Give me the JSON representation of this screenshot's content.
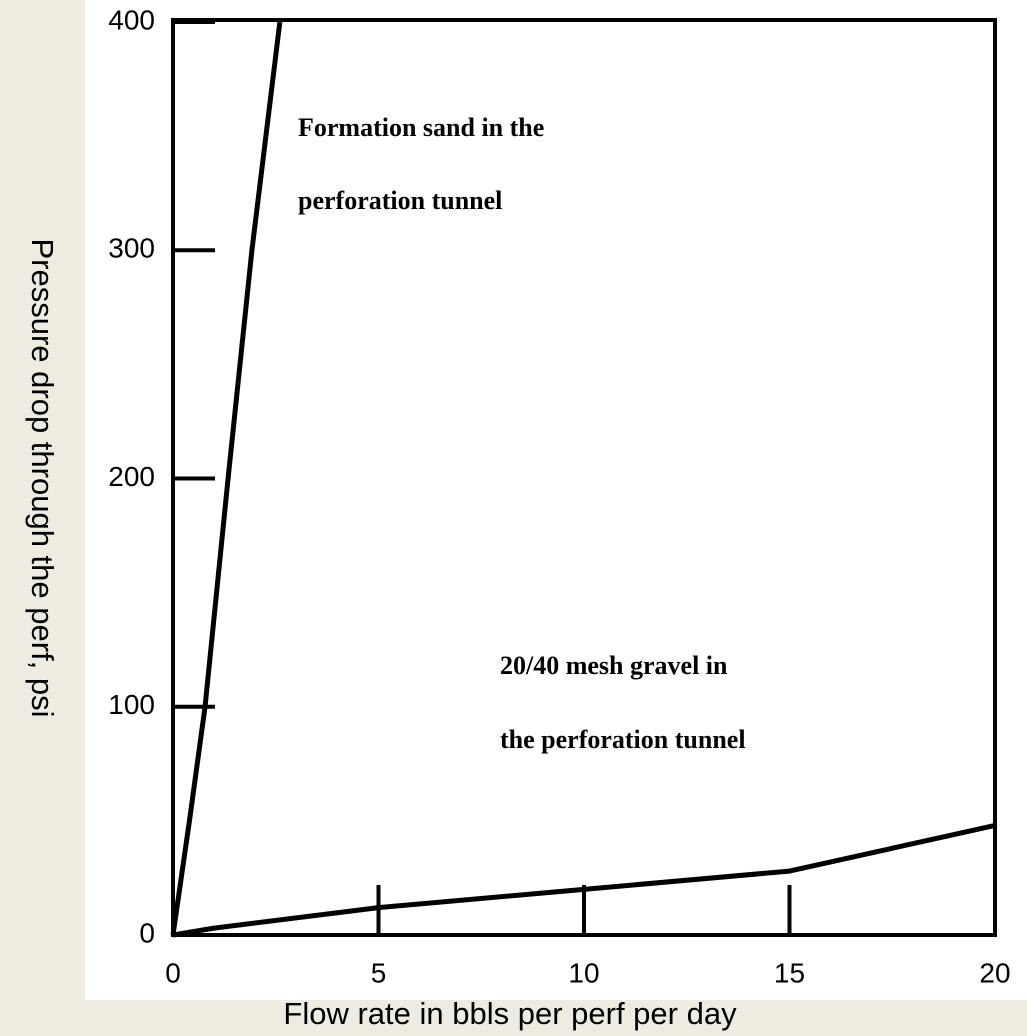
{
  "chart_data": {
    "type": "line",
    "xlabel": "Flow rate in bbls per perf per day",
    "ylabel": "Pressure drop through the perf, psi",
    "annotations": [
      "Formation sand in the",
      "perforation tunnel",
      "20/40 mesh gravel in",
      "the perforation tunnel"
    ],
    "xlim": [
      0,
      20
    ],
    "xticks": [
      0,
      5,
      10,
      15,
      20
    ],
    "ylim": [
      0,
      400
    ],
    "yticks": [
      0,
      100,
      200,
      300,
      400
    ],
    "series": [
      {
        "color": "#000000",
        "x": [
          0,
          0.4,
          0.78,
          1.34,
          1.92,
          2.6
        ],
        "values": [
          0,
          50,
          100,
          200,
          300,
          400
        ]
      },
      {
        "color": "#000000",
        "x": [
          0,
          1,
          5,
          10,
          15,
          20
        ],
        "values": [
          0,
          3,
          12,
          20,
          28,
          48
        ]
      }
    ]
  }
}
